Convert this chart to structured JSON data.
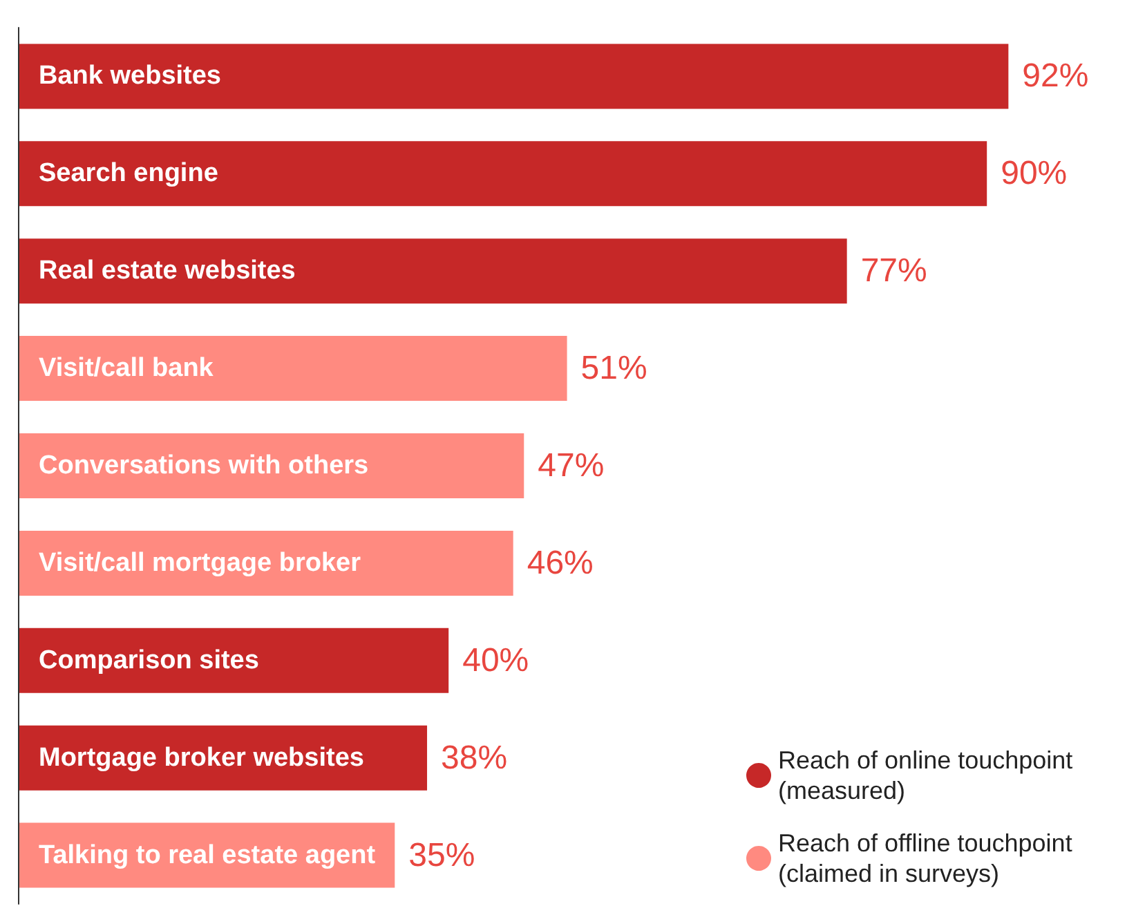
{
  "chart_data": {
    "type": "bar",
    "orientation": "horizontal",
    "categories": [
      "Bank websites",
      "Search engine",
      "Real estate websites",
      "Visit/call bank",
      "Conversations with others",
      "Visit/call mortgage broker",
      "Comparison sites",
      "Mortgage broker websites",
      "Talking to real estate agent"
    ],
    "series": [
      {
        "name": "Reach of online touchpoint (measured)",
        "color": "#c62828",
        "values": [
          92,
          90,
          77,
          null,
          null,
          null,
          40,
          38,
          null
        ],
        "value_labels": [
          "92%",
          "90%",
          "77%",
          null,
          null,
          null,
          "40%",
          "38%",
          null
        ]
      },
      {
        "name": "Reach of offline touchpoint (claimed in surveys)",
        "color": "#ff8a80",
        "values": [
          null,
          null,
          null,
          51,
          47,
          46,
          null,
          null,
          35
        ],
        "value_labels": [
          null,
          null,
          null,
          "51%",
          "47%",
          "46%",
          null,
          null,
          "35%"
        ]
      }
    ],
    "legend": "bottom right"
  }
}
